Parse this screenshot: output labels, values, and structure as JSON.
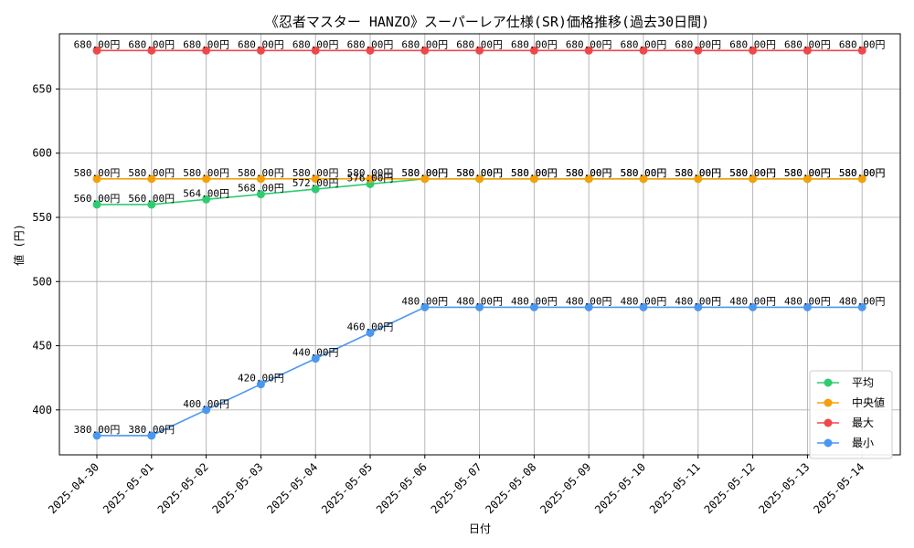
{
  "chart_data": {
    "type": "line",
    "title": "《忍者マスター HANZO》スーパーレア仕様(SR)価格推移(過去30日間)",
    "xlabel": "日付",
    "ylabel": "値 (円)",
    "ylim": [
      365,
      693
    ],
    "yticks": [
      400,
      450,
      500,
      550,
      600,
      650
    ],
    "grid": true,
    "legend_position": "bottom-right",
    "categories": [
      "2025-04-30",
      "2025-05-01",
      "2025-05-02",
      "2025-05-03",
      "2025-05-04",
      "2025-05-05",
      "2025-05-06",
      "2025-05-07",
      "2025-05-08",
      "2025-05-09",
      "2025-05-10",
      "2025-05-11",
      "2025-05-12",
      "2025-05-13",
      "2025-05-14"
    ],
    "series": [
      {
        "name": "平均",
        "color": "#2ecc71",
        "values": [
          560,
          560,
          564,
          568,
          572,
          576,
          580,
          580,
          580,
          580,
          580,
          580,
          580,
          580,
          580
        ]
      },
      {
        "name": "中央値",
        "color": "#f5a00a",
        "values": [
          580,
          580,
          580,
          580,
          580,
          580,
          580,
          580,
          580,
          580,
          580,
          580,
          580,
          580,
          580
        ]
      },
      {
        "name": "最大",
        "color": "#f04848",
        "values": [
          680,
          680,
          680,
          680,
          680,
          680,
          680,
          680,
          680,
          680,
          680,
          680,
          680,
          680,
          680
        ]
      },
      {
        "name": "最小",
        "color": "#4a97f0",
        "values": [
          380,
          380,
          400,
          420,
          440,
          460,
          480,
          480,
          480,
          480,
          480,
          480,
          480,
          480,
          480
        ]
      }
    ],
    "label_suffix": "円"
  }
}
